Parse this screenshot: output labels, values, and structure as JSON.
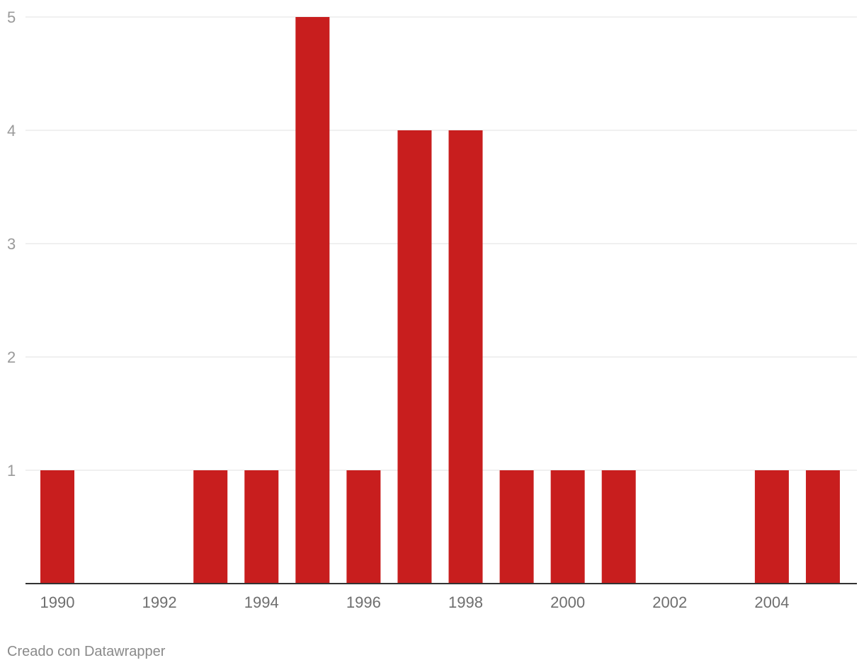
{
  "chart_data": {
    "type": "bar",
    "categories": [
      "1990",
      "1991",
      "1992",
      "1993",
      "1994",
      "1995",
      "1996",
      "1997",
      "1998",
      "1999",
      "2000",
      "2001",
      "2002",
      "2003",
      "2004",
      "2005"
    ],
    "values": [
      1,
      0,
      0,
      1,
      1,
      5,
      1,
      4,
      4,
      1,
      1,
      1,
      0,
      0,
      1,
      1
    ],
    "x_tick_labels": [
      "1990",
      "1992",
      "1994",
      "1996",
      "1998",
      "2000",
      "2002",
      "2004"
    ],
    "y_ticks": [
      1,
      2,
      3,
      4,
      5
    ],
    "ylim": [
      0,
      5
    ],
    "bar_color": "#c81e1e",
    "grid": true,
    "legend": "none",
    "title": "",
    "xlabel": "",
    "ylabel": ""
  },
  "footer": {
    "credit": "Creado con Datawrapper"
  }
}
